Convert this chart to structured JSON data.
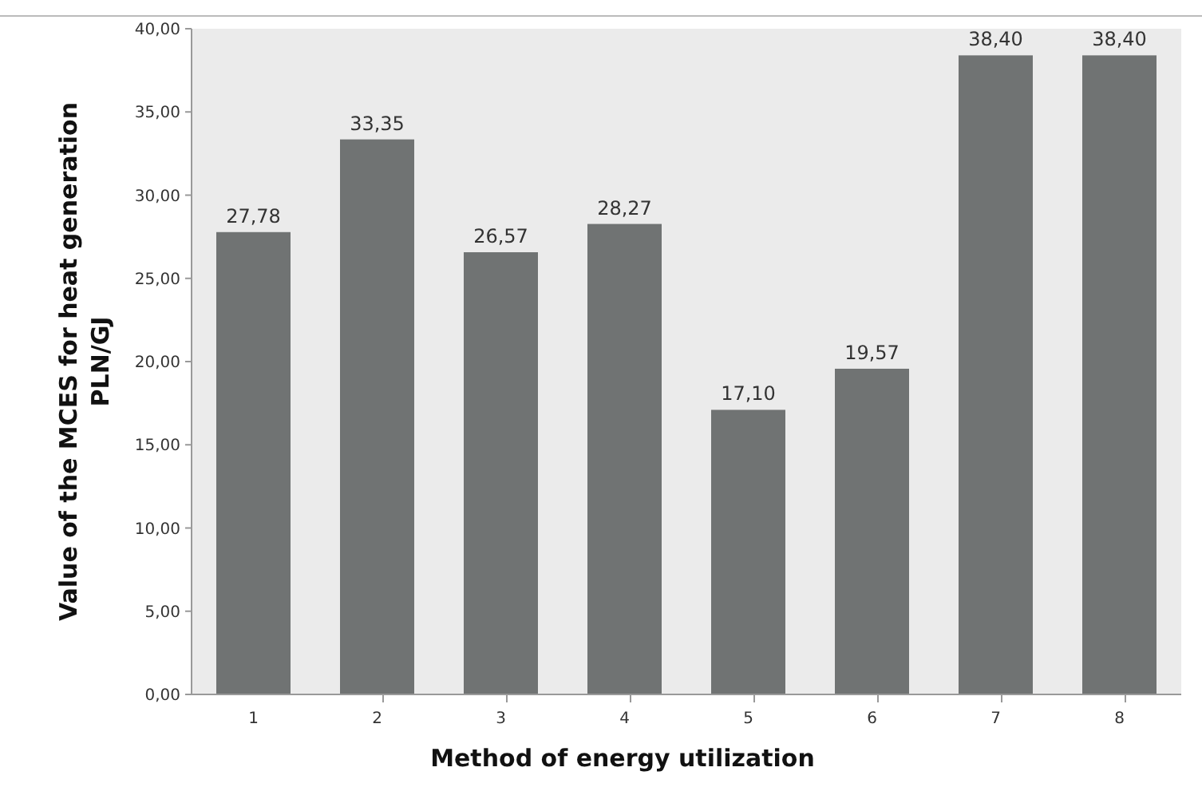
{
  "chart_data": {
    "type": "bar",
    "xlabel": "Method of energy utilization",
    "ylabel": "Value of the MCES for heat generation\nPLN/GJ",
    "categories": [
      "1",
      "2",
      "3",
      "4",
      "5",
      "6",
      "7",
      "8"
    ],
    "values": [
      27.78,
      33.35,
      26.57,
      28.27,
      17.1,
      19.57,
      38.4,
      38.4
    ],
    "value_labels": [
      "27,78",
      "33,35",
      "26,57",
      "28,27",
      "17,10",
      "19,57",
      "38,40",
      "38,40"
    ],
    "color": "#707373",
    "ylim": [
      0,
      40
    ],
    "yticks": [
      {
        "value": 0,
        "label": "0,00"
      },
      {
        "value": 5,
        "label": "5,00"
      },
      {
        "value": 10,
        "label": "10,00"
      },
      {
        "value": 15,
        "label": "15,00"
      },
      {
        "value": 20,
        "label": "20,00"
      },
      {
        "value": 25,
        "label": "25,00"
      },
      {
        "value": 30,
        "label": "30,00"
      },
      {
        "value": 35,
        "label": "35,00"
      },
      {
        "value": 40,
        "label": "40,00"
      }
    ],
    "grid": false
  }
}
